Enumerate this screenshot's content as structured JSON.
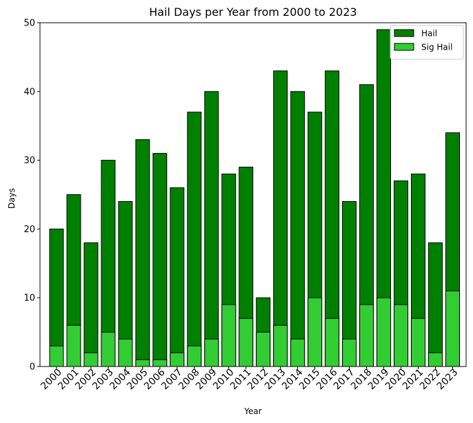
{
  "chart_data": {
    "type": "bar",
    "title": "Hail Days per Year from 2000 to 2023",
    "xlabel": "Year",
    "ylabel": "Days",
    "ylim": [
      0,
      50
    ],
    "yticks": [
      0,
      10,
      20,
      30,
      40,
      50
    ],
    "categories": [
      "2000",
      "2001",
      "2002",
      "2003",
      "2004",
      "2005",
      "2006",
      "2007",
      "2008",
      "2009",
      "2010",
      "2011",
      "2012",
      "2013",
      "2014",
      "2015",
      "2016",
      "2017",
      "2018",
      "2019",
      "2020",
      "2021",
      "2022",
      "2023"
    ],
    "series": [
      {
        "name": "Hail",
        "color": "#008000",
        "values": [
          20,
          25,
          18,
          30,
          24,
          33,
          31,
          26,
          37,
          40,
          28,
          29,
          10,
          43,
          40,
          37,
          43,
          24,
          41,
          49,
          27,
          28,
          18,
          34
        ]
      },
      {
        "name": "Sig Hail",
        "color": "#32cd32",
        "values": [
          3,
          6,
          2,
          5,
          4,
          1,
          1,
          2,
          3,
          4,
          9,
          7,
          5,
          6,
          4,
          10,
          7,
          4,
          9,
          10,
          9,
          7,
          2,
          11
        ]
      }
    ],
    "legend_position": "top-right",
    "grid": false
  }
}
